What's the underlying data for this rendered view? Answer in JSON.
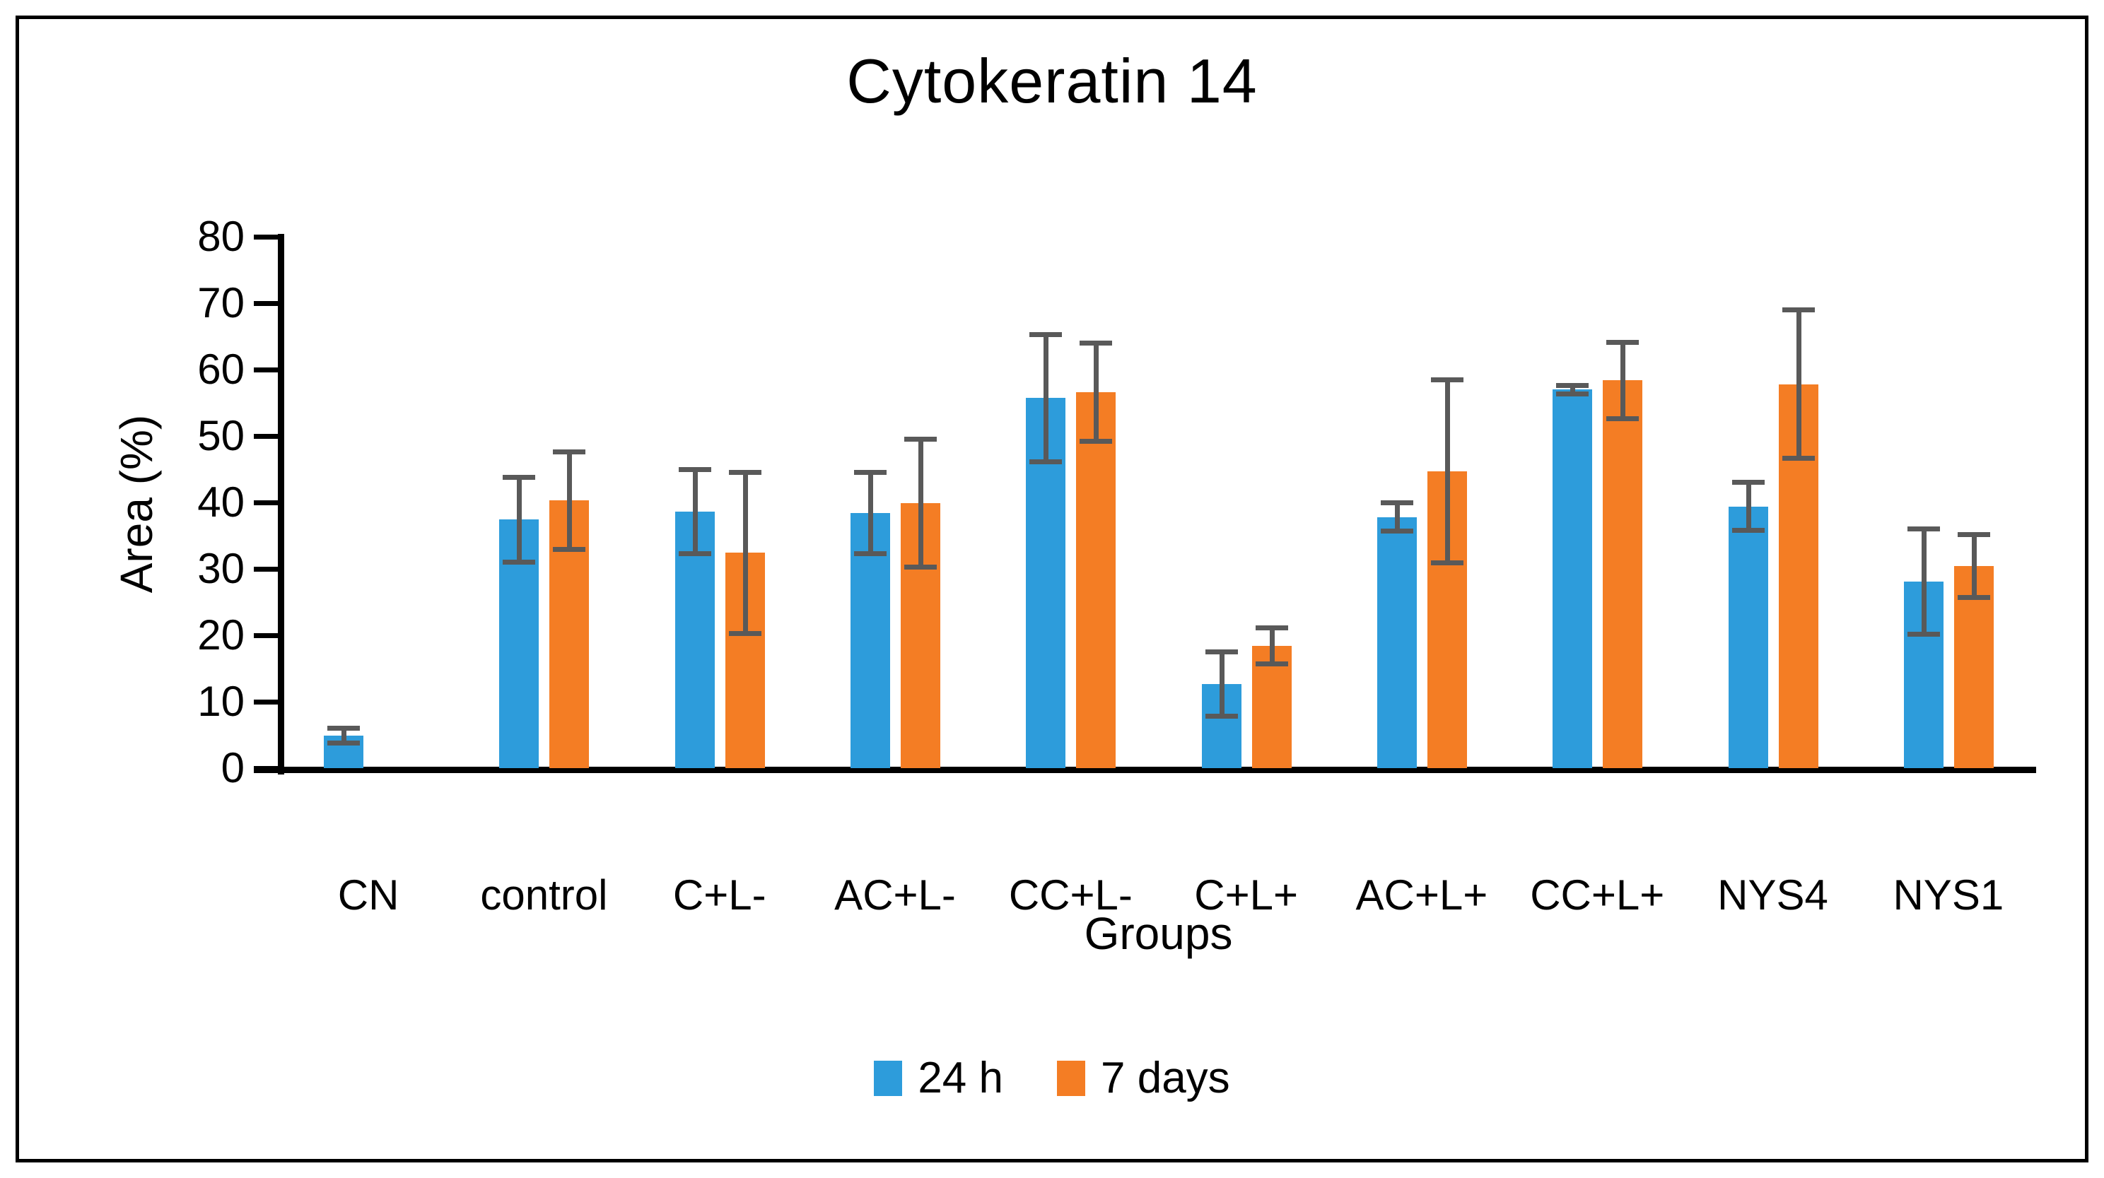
{
  "colors": {
    "axis": "#000000",
    "error_bar": "#595959",
    "background": "#ffffff",
    "frame_border": "#000000",
    "series_24h": "#2D9CDB",
    "series_7days": "#F47D24"
  },
  "chart_data": {
    "type": "bar",
    "title": "Cytokeratin 14",
    "xlabel": "Groups",
    "ylabel": "Area (%)",
    "ylim": [
      0,
      80
    ],
    "yticks": [
      0,
      10,
      20,
      30,
      40,
      50,
      60,
      70,
      80
    ],
    "grid": false,
    "legend_position": "bottom",
    "categories": [
      "CN",
      "control",
      "C+L-",
      "AC+L-",
      "CC+L-",
      "C+L+",
      "AC+L+",
      "CC+L+",
      "NYS4",
      "NYS1"
    ],
    "series": [
      {
        "name": "24 h",
        "color": "#2D9CDB",
        "values": [
          4.9,
          37.4,
          38.6,
          38.4,
          55.7,
          12.7,
          37.8,
          57.0,
          39.4,
          28.1
        ],
        "errors": [
          1.2,
          6.4,
          6.4,
          6.2,
          9.6,
          4.9,
          2.2,
          0.7,
          3.7,
          8.0
        ]
      },
      {
        "name": "7 days",
        "color": "#F47D24",
        "values": [
          null,
          40.3,
          32.4,
          39.9,
          56.6,
          18.4,
          44.7,
          58.4,
          57.8,
          30.4
        ],
        "errors": [
          null,
          7.4,
          12.2,
          9.7,
          7.4,
          2.8,
          13.8,
          5.8,
          11.2,
          4.8
        ]
      }
    ]
  }
}
